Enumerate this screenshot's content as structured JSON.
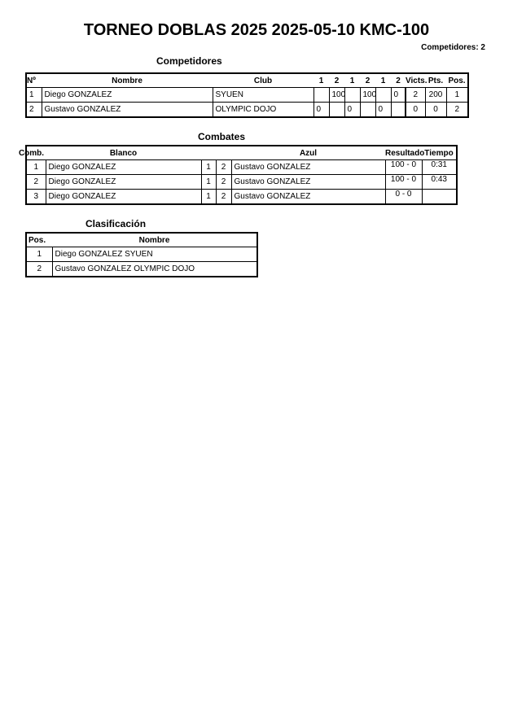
{
  "title": "TORNEO DOBLAS 2025 2025-05-10 KMC-100",
  "competitors_count": "Competidores: 2",
  "competidores": {
    "heading": "Competidores",
    "headers": [
      "Nº",
      "Nombre",
      "Club",
      "1",
      "2",
      "1",
      "2",
      "1",
      "2",
      "Victs.",
      "Pts.",
      "Pos."
    ],
    "rows": [
      [
        "1",
        "Diego GONZALEZ",
        "SYUEN",
        "",
        "100",
        "",
        "100",
        "",
        "0",
        "2",
        "200",
        "1"
      ],
      [
        "2",
        "Gustavo GONZALEZ",
        "OLYMPIC DOJO",
        "0",
        "",
        "0",
        "",
        "0",
        "",
        "0",
        "0",
        "2"
      ]
    ]
  },
  "combates": {
    "heading": "Combates",
    "headers": [
      "Comb.",
      "Blanco",
      "",
      "",
      "Azul",
      "Resultado",
      "Tiempo"
    ],
    "rows": [
      [
        "1",
        "Diego GONZALEZ",
        "1",
        "2",
        "Gustavo GONZALEZ",
        "100 - 0",
        "0:31"
      ],
      [
        "2",
        "Diego GONZALEZ",
        "1",
        "2",
        "Gustavo GONZALEZ",
        "100 - 0",
        "0:43"
      ],
      [
        "3",
        "Diego GONZALEZ",
        "1",
        "2",
        "Gustavo GONZALEZ",
        "0 - 0",
        ""
      ]
    ]
  },
  "clasificacion": {
    "heading": "Clasificación",
    "headers": [
      "Pos.",
      "Nombre"
    ],
    "rows": [
      [
        "1",
        "Diego GONZALEZ SYUEN"
      ],
      [
        "2",
        "Gustavo GONZALEZ OLYMPIC DOJO"
      ]
    ]
  }
}
